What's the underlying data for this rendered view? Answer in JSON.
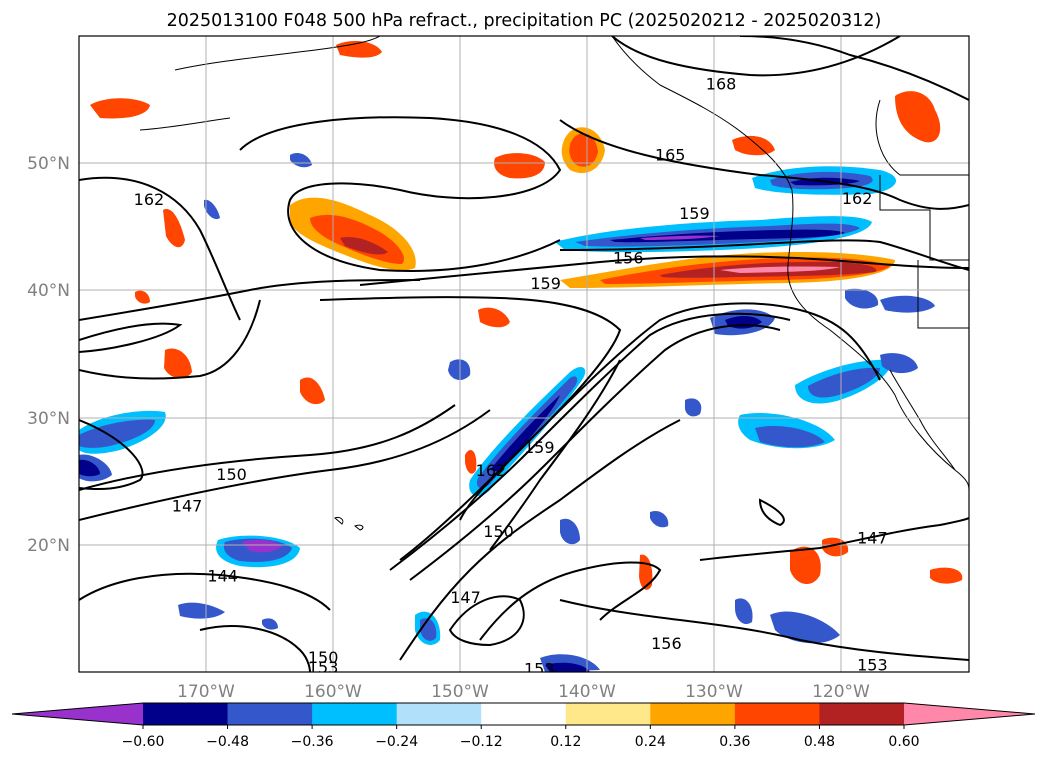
{
  "chart_data": {
    "type": "heatmap",
    "title": "2025013100 F048 500 hPa refract., precipitation PC (2025020212 - 2025020312)",
    "x_ticks": [
      "170°W",
      "160°W",
      "150°W",
      "140°W",
      "130°W",
      "120°W"
    ],
    "y_ticks": [
      "50°N",
      "40°N",
      "30°N",
      "20°N"
    ],
    "xlim": [
      -180,
      -110
    ],
    "ylim": [
      10,
      60
    ],
    "grid": true,
    "colorbar": {
      "levels": [
        -0.6,
        -0.48,
        -0.36,
        -0.24,
        -0.12,
        0.12,
        0.24,
        0.36,
        0.48,
        0.6
      ],
      "tick_labels": [
        "−0.60",
        "−0.48",
        "−0.36",
        "−0.24",
        "−0.12",
        "0.12",
        "0.24",
        "0.36",
        "0.48",
        "0.60"
      ],
      "colors": [
        "#9932cc",
        "#00008b",
        "#3458cc",
        "#00bfff",
        "#b0e0fa",
        "#ffffff",
        "#ffe88a",
        "#ffa500",
        "#ff4500",
        "#b22222",
        "#ff88aa"
      ],
      "extend": "both"
    },
    "contours": [
      {
        "value": 168,
        "label": "168",
        "lon": -129.5,
        "lat": 56.2
      },
      {
        "value": 165,
        "label": "165",
        "lon": -133.5,
        "lat": 50.6
      },
      {
        "value": 162,
        "label": "162",
        "lon": -174.5,
        "lat": 47.1
      },
      {
        "value": 162,
        "label": "162",
        "lon": -118.8,
        "lat": 47.2
      },
      {
        "value": 159,
        "label": "159",
        "lon": -131.6,
        "lat": 46.0
      },
      {
        "value": 159,
        "label": "159",
        "lon": -143.3,
        "lat": 40.5
      },
      {
        "value": 156,
        "label": "156",
        "lon": -136.8,
        "lat": 42.5
      },
      {
        "value": 150,
        "label": "150",
        "lon": -168.0,
        "lat": 25.5
      },
      {
        "value": 147,
        "label": "147",
        "lon": -171.5,
        "lat": 23.0
      },
      {
        "value": 144,
        "label": "144",
        "lon": -168.7,
        "lat": 17.5
      },
      {
        "value": 162,
        "label": "162",
        "lon": -147.6,
        "lat": 25.8
      },
      {
        "value": 159,
        "label": "159",
        "lon": -143.8,
        "lat": 27.6
      },
      {
        "value": 150,
        "label": "150",
        "lon": -147.0,
        "lat": 21.0
      },
      {
        "value": 147,
        "label": "147",
        "lon": -149.6,
        "lat": 15.8
      },
      {
        "value": 156,
        "label": "156",
        "lon": -133.8,
        "lat": 12.2
      },
      {
        "value": 147,
        "label": "147",
        "lon": -117.6,
        "lat": 20.5
      },
      {
        "value": 153,
        "label": "153",
        "lon": -117.6,
        "lat": 10.5
      },
      {
        "value": 150,
        "label": "150",
        "lon": -160.8,
        "lat": 11.1
      },
      {
        "value": 153,
        "label": "153",
        "lon": -160.8,
        "lat": 10.3
      },
      {
        "value": 153,
        "label": "153",
        "lon": -143.8,
        "lat": 10.2
      }
    ]
  }
}
